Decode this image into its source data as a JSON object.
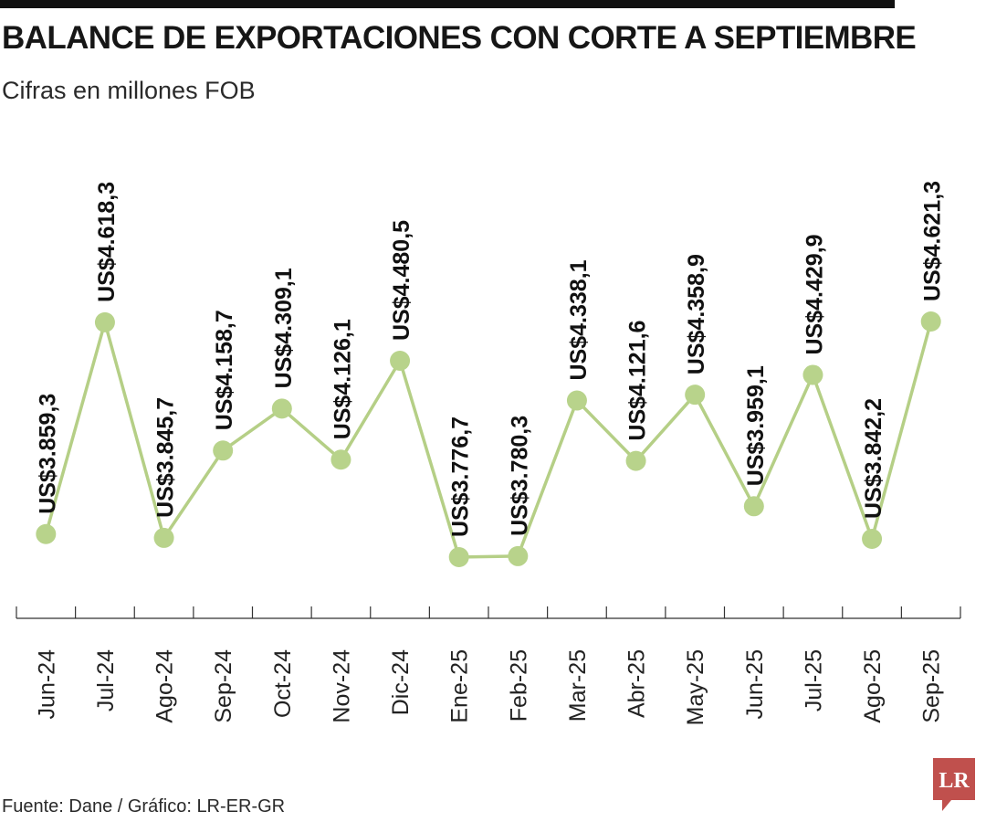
{
  "header": {
    "title": "BALANCE DE EXPORTACIONES CON CORTE A SEPTIEMBRE",
    "subtitle": "Cifras en millones FOB"
  },
  "footer": {
    "source": "Fuente: Dane / Gráfico: LR-ER-GR",
    "logo_text": "LR"
  },
  "colors": {
    "line": "#b5cf86",
    "marker": "#b8d38b",
    "axis": "#333333",
    "label": "#111111",
    "logo": "#c0504d"
  },
  "chart_data": {
    "type": "line",
    "title": "BALANCE DE EXPORTACIONES CON CORTE A SEPTIEMBRE",
    "subtitle": "Cifras en millones FOB",
    "xlabel": "",
    "ylabel": "",
    "categories": [
      "Jun-24",
      "Jul-24",
      "Ago-24",
      "Sep-24",
      "Oct-24",
      "Nov-24",
      "Dic-24",
      "Ene-25",
      "Feb-25",
      "Mar-25",
      "Abr-25",
      "May-25",
      "Jun-25",
      "Jul-25",
      "Ago-25",
      "Sep-25"
    ],
    "values": [
      3859.3,
      4618.3,
      3845.7,
      4158.7,
      4309.1,
      4126.1,
      4480.5,
      3776.7,
      3780.3,
      4338.1,
      4121.6,
      4358.9,
      3959.1,
      4429.9,
      3842.2,
      4621.3
    ],
    "data_labels": [
      "US$3.859,3",
      "US$4.618,3",
      "US$3.845,7",
      "US$4.158,7",
      "US$4.309,1",
      "US$4.126,1",
      "US$4.480,5",
      "US$3.776,7",
      "US$3.780,3",
      "US$4.338,1",
      "US$4.121,6",
      "US$4.358,9",
      "US$3.959,1",
      "US$4.429,9",
      "US$3.842,2",
      "US$4.621,3"
    ],
    "grid": false,
    "legend": "none"
  }
}
